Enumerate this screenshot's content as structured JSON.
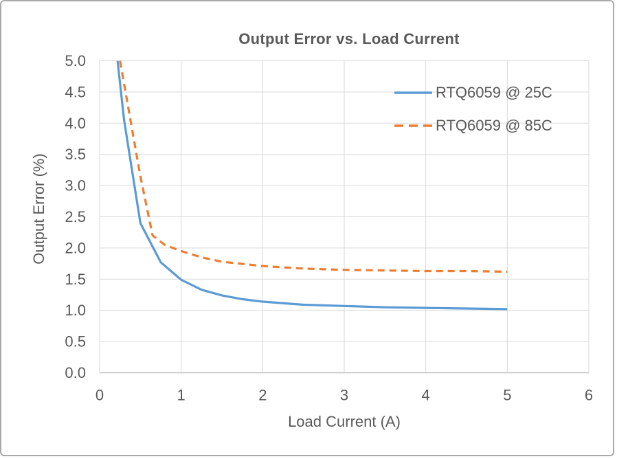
{
  "chart_data": {
    "type": "line",
    "title": "Output Error vs. Load Current",
    "xlabel": "Load Current (A)",
    "ylabel": "Output Error (%)",
    "xlim": [
      0,
      6
    ],
    "ylim": [
      0,
      5
    ],
    "xticks": [
      0,
      1,
      2,
      3,
      4,
      5,
      6
    ],
    "xtick_labels": [
      "0",
      "1",
      "2",
      "3",
      "4",
      "5",
      "6"
    ],
    "yticks": [
      0.0,
      0.5,
      1.0,
      1.5,
      2.0,
      2.5,
      3.0,
      3.5,
      4.0,
      4.5,
      5.0
    ],
    "ytick_labels": [
      "0.0",
      "0.5",
      "1.0",
      "1.5",
      "2.0",
      "2.5",
      "3.0",
      "3.5",
      "4.0",
      "4.5",
      "5.0"
    ],
    "grid": true,
    "legend_position": "inside-top-right",
    "series": [
      {
        "name": "RTQ6059 @ 25C",
        "color": "#5B9BD5",
        "style": "solid",
        "x": [
          0.22,
          0.3,
          0.5,
          0.75,
          1.0,
          1.25,
          1.5,
          1.75,
          2.0,
          2.5,
          3.0,
          3.5,
          4.0,
          4.5,
          5.0
        ],
        "y": [
          5.0,
          4.05,
          2.4,
          1.77,
          1.49,
          1.33,
          1.24,
          1.18,
          1.14,
          1.09,
          1.07,
          1.05,
          1.04,
          1.03,
          1.02
        ]
      },
      {
        "name": "RTQ6059 @ 85C",
        "color": "#ED7D31",
        "style": "dashed",
        "x": [
          0.25,
          0.5,
          0.65,
          0.8,
          1.0,
          1.25,
          1.5,
          2.0,
          2.5,
          3.0,
          3.5,
          4.0,
          4.5,
          5.0
        ],
        "y": [
          5.0,
          3.15,
          2.2,
          2.05,
          1.95,
          1.85,
          1.78,
          1.71,
          1.67,
          1.65,
          1.64,
          1.63,
          1.63,
          1.62
        ]
      }
    ],
    "colors": {
      "text": "#595959",
      "gridline": "#D9D9D9",
      "axis_line": "#BFBFBF",
      "background": "#FFFFFF"
    }
  }
}
